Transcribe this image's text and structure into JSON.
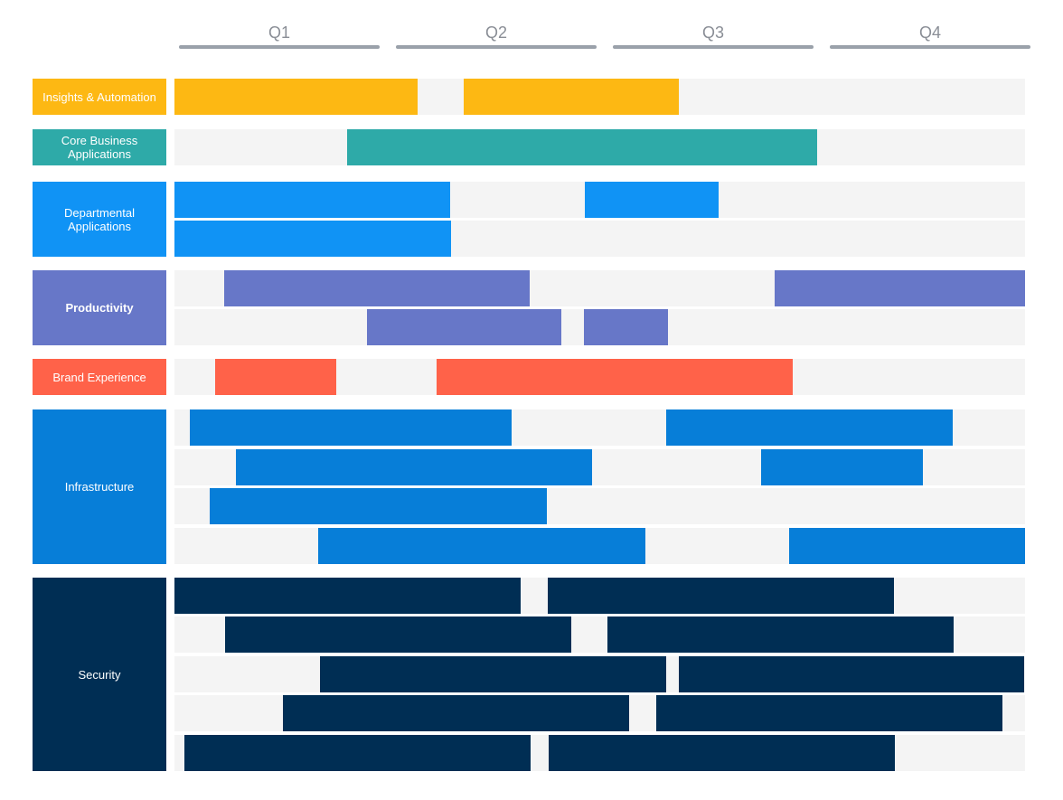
{
  "quarters": [
    "Q1",
    "Q2",
    "Q3",
    "Q4"
  ],
  "colors": {
    "track": "#f4f4f4",
    "quarter_text": "#8a8e96",
    "quarter_line": "#9aa1aa"
  },
  "timeline_unit": "fraction of year (0 = start of Q1, 1 = end of Q4)",
  "categories": [
    {
      "name": "Insights & Automation",
      "color": "#fdb813",
      "bold": false,
      "rows": [
        [
          [
            0.0,
            0.286
          ],
          [
            0.34,
            0.593
          ]
        ]
      ]
    },
    {
      "name": "Core Business Applications",
      "color": "#2eaaa8",
      "bold": false,
      "rows": [
        [
          [
            0.203,
            0.756
          ]
        ]
      ]
    },
    {
      "name": "Departmental Applications",
      "color": "#1093f5",
      "bold": false,
      "rows": [
        [
          [
            0.0,
            0.324
          ],
          [
            0.482,
            0.64
          ]
        ],
        [
          [
            0.0,
            0.325
          ]
        ]
      ]
    },
    {
      "name": "Productivity",
      "color": "#6777c8",
      "bold": true,
      "rows": [
        [
          [
            0.058,
            0.418
          ],
          [
            0.706,
            1.0
          ]
        ],
        [
          [
            0.226,
            0.455
          ],
          [
            0.481,
            0.58
          ]
        ]
      ]
    },
    {
      "name": "Brand Experience",
      "color": "#ff6249",
      "bold": false,
      "rows": [
        [
          [
            0.048,
            0.19
          ],
          [
            0.308,
            0.727
          ]
        ]
      ]
    },
    {
      "name": "Infrastructure",
      "color": "#077ed8",
      "bold": false,
      "rows": [
        [
          [
            0.018,
            0.396
          ],
          [
            0.578,
            0.915
          ]
        ],
        [
          [
            0.072,
            0.491
          ],
          [
            0.69,
            0.88
          ]
        ],
        [
          [
            0.041,
            0.438
          ]
        ],
        [
          [
            0.169,
            0.554
          ],
          [
            0.723,
            1.0
          ]
        ]
      ]
    },
    {
      "name": "Security",
      "color": "#002e54",
      "bold": false,
      "rows": [
        [
          [
            0.0,
            0.407
          ],
          [
            0.439,
            0.846
          ]
        ],
        [
          [
            0.06,
            0.467
          ],
          [
            0.509,
            0.916
          ]
        ],
        [
          [
            0.171,
            0.578
          ],
          [
            0.593,
            0.999
          ]
        ],
        [
          [
            0.128,
            0.535
          ],
          [
            0.566,
            0.973
          ]
        ],
        [
          [
            0.012,
            0.419
          ],
          [
            0.44,
            0.847
          ]
        ]
      ]
    }
  ]
}
